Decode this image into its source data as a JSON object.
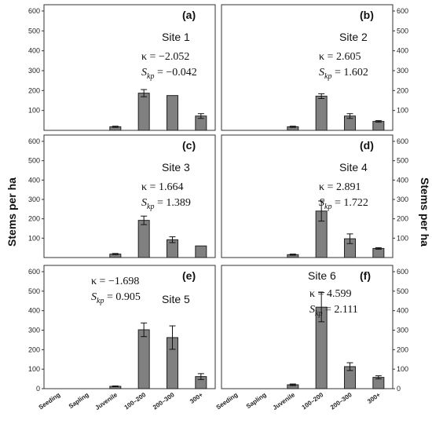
{
  "figure": {
    "ylabel_left": "Stems per ha",
    "ylabel_right": "Stems per ha"
  },
  "chart_data": [
    {
      "type": "bar",
      "panel": "(a)",
      "site": "Site 1",
      "kappa": "κ = −2.052",
      "skp": "= −0.042",
      "categories": [
        "Seeding",
        "Sapling",
        "Juvenile",
        "100–200",
        "200–300",
        "300+"
      ],
      "values": [
        0,
        0,
        18,
        187,
        175,
        72
      ],
      "errors": [
        0,
        0,
        3,
        18,
        0,
        12
      ],
      "ylim": [
        0,
        600
      ],
      "yticks": [
        100,
        200,
        300,
        400,
        500,
        600
      ],
      "yaxis_side": "left"
    },
    {
      "type": "bar",
      "panel": "(b)",
      "site": "Site 2",
      "kappa": "κ = 2.605",
      "skp": "= 1.602",
      "categories": [
        "Seeding",
        "Sapling",
        "Juvenile",
        "100–200",
        "200–300",
        "300+"
      ],
      "values": [
        0,
        0,
        18,
        172,
        72,
        45
      ],
      "errors": [
        0,
        0,
        3,
        12,
        12,
        4
      ],
      "ylim": [
        0,
        600
      ],
      "yticks": [
        100,
        200,
        300,
        400,
        500,
        600
      ],
      "yaxis_side": "right"
    },
    {
      "type": "bar",
      "panel": "(c)",
      "site": "Site 3",
      "kappa": "κ = 1.664",
      "skp": "= 1.389",
      "categories": [
        "Seeding",
        "Sapling",
        "Juvenile",
        "100–200",
        "200–300",
        "300+"
      ],
      "values": [
        0,
        0,
        18,
        192,
        92,
        60
      ],
      "errors": [
        0,
        0,
        3,
        22,
        15,
        0
      ],
      "ylim": [
        0,
        600
      ],
      "yticks": [
        100,
        200,
        300,
        400,
        500,
        600
      ],
      "yaxis_side": "left"
    },
    {
      "type": "bar",
      "panel": "(d)",
      "site": "Site 4",
      "kappa": "κ = 2.891",
      "skp": "= 1.722",
      "categories": [
        "Seeding",
        "Sapling",
        "Juvenile",
        "100–200",
        "200–300",
        "300+"
      ],
      "values": [
        0,
        0,
        15,
        240,
        97,
        47
      ],
      "errors": [
        0,
        0,
        3,
        52,
        25,
        4
      ],
      "ylim": [
        0,
        600
      ],
      "yticks": [
        100,
        200,
        300,
        400,
        500,
        600
      ],
      "yaxis_side": "right"
    },
    {
      "type": "bar",
      "panel": "(e)",
      "site": "Site 5",
      "kappa": "κ = −1.698",
      "skp": "= 0.905",
      "categories": [
        "Seeding",
        "Sapling",
        "Juvenile",
        "100–200",
        "200–300",
        "300+"
      ],
      "values": [
        0,
        0,
        12,
        302,
        262,
        62
      ],
      "errors": [
        0,
        0,
        2,
        35,
        60,
        15
      ],
      "ylim": [
        0,
        600
      ],
      "yticks": [
        0,
        100,
        200,
        300,
        400,
        500,
        600
      ],
      "yaxis_side": "left"
    },
    {
      "type": "bar",
      "panel": "(f)",
      "site": "Site 6",
      "kappa": "κ = 4.599",
      "skp": "= 2.111",
      "categories": [
        "Seeding",
        "Sapling",
        "Juvenile",
        "100–200",
        "200–300",
        "300+"
      ],
      "values": [
        0,
        0,
        20,
        418,
        113,
        58
      ],
      "errors": [
        0,
        0,
        4,
        75,
        20,
        8
      ],
      "ylim": [
        0,
        600
      ],
      "yticks": [
        0,
        100,
        200,
        300,
        400,
        500,
        600
      ],
      "yaxis_side": "right"
    }
  ]
}
